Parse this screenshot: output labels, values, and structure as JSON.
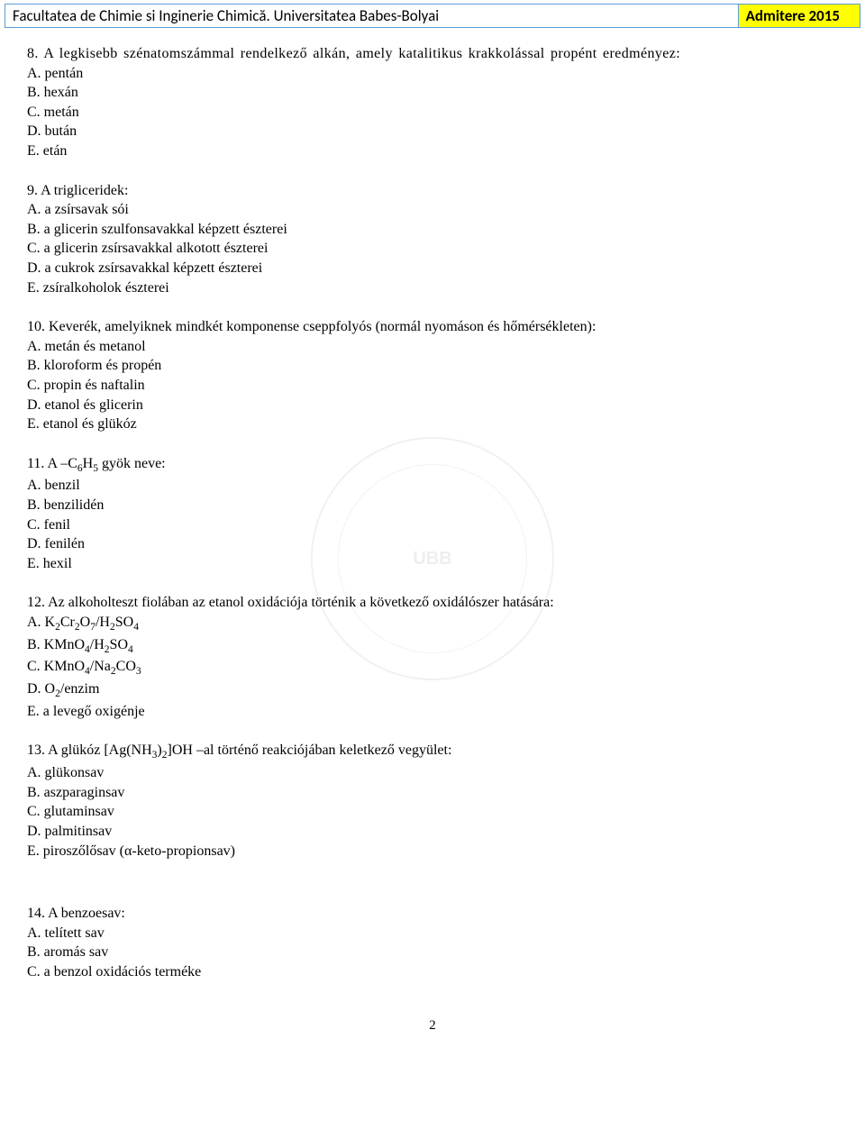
{
  "header": {
    "left": "Facultatea de Chimie si Inginerie Chimică. Universitatea Babes-Bolyai",
    "right": "Admitere 2015"
  },
  "page_number": "2",
  "watermark_center": "UBB",
  "questions": [
    {
      "number": "8.",
      "text": "A legkisebb szénatomszámmal rendelkező alkán, amely katalitikus krakkolással propént eredményez:",
      "wide": true,
      "options": [
        "A. pentán",
        "B. hexán",
        "C. metán",
        "D. bután",
        "E. etán"
      ]
    },
    {
      "number": "9.",
      "text": "A trigliceridek:",
      "options": [
        "A. a zsírsavak sói",
        "B. a glicerin szulfonsavakkal képzett észterei",
        "C. a glicerin zsírsavakkal alkotott észterei",
        "D. a cukrok zsírsavakkal képzett észterei",
        "E. zsíralkoholok észterei"
      ]
    },
    {
      "number": "10.",
      "text": "Keverék, amelyiknek mindkét komponense cseppfolyós (normál nyomáson és hőmérsékleten):",
      "options": [
        "A. metán és metanol",
        "B. kloroform és propén",
        "C. propin és naftalin",
        "D. etanol és glicerin",
        "E. etanol és glükóz"
      ]
    },
    {
      "number": "11.",
      "text_html": "A –C<span class=\"sub\">6</span>H<span class=\"sub\">5</span> gyök neve:",
      "options": [
        "A. benzil",
        "B. benzilidén",
        "C. fenil",
        "D. fenilén",
        "E. hexil"
      ]
    },
    {
      "number": "12.",
      "text": "Az alkoholteszt fiolában az etanol oxidációja történik a következő oxidálószer hatására:",
      "options_html": [
        "A. K<span class=\"sub\">2</span>Cr<span class=\"sub\">2</span>O<span class=\"sub\">7</span>/H<span class=\"sub\">2</span>SO<span class=\"sub\">4</span>",
        "B. KMnO<span class=\"sub\">4</span>/H<span class=\"sub\">2</span>SO<span class=\"sub\">4</span>",
        "C. KMnO<span class=\"sub\">4</span>/Na<span class=\"sub\">2</span>CO<span class=\"sub\">3</span>",
        "D. O<span class=\"sub\">2</span>/enzim",
        "E. a levegő oxigénje"
      ]
    },
    {
      "number": "13.",
      "text_html": "A glükóz [Ag(NH<span class=\"sub\">3</span>)<span class=\"sub\">2</span>]OH –al történő reakciójában keletkező vegyület:",
      "options": [
        "A. glükonsav",
        "B. aszparaginsav",
        "C. glutaminsav",
        "D. palmitinsav",
        "E. piroszőlősav (α-keto-propionsav)"
      ]
    },
    {
      "number": "14.",
      "text": "A benzoesav:",
      "options": [
        "A. telített sav",
        "B. aromás sav",
        "C. a benzol oxidációs terméke"
      ],
      "spaced_before": true
    }
  ]
}
